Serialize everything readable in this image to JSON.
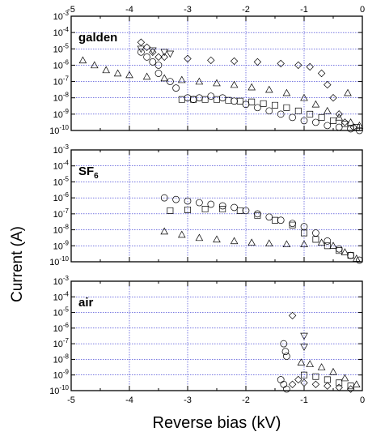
{
  "chart_data": {
    "type": "scatter",
    "x_axis": {
      "label": "Reverse bias (kV)",
      "range": [
        -5,
        0
      ],
      "ticks": [
        -5,
        -4,
        -3,
        -2,
        -1,
        0
      ],
      "tick_labels": [
        "-5",
        "-4",
        "-3",
        "-2",
        "-1",
        "0"
      ],
      "top_tick_labels": true
    },
    "y_axis": {
      "label": "Current (A)",
      "scale": "log",
      "range_exponent": [
        -10,
        -3
      ],
      "ticks_exponent": [
        -10,
        -9,
        -8,
        -7,
        -6,
        -5,
        -4,
        -3
      ],
      "tick_base": "10"
    },
    "grid": true,
    "panels": [
      {
        "label": "galden",
        "label_sub": "",
        "series": [
          {
            "marker": "circle",
            "points": [
              [
                -3.8,
                -5.2
              ],
              [
                -3.7,
                -5.5
              ],
              [
                -3.6,
                -5.8
              ],
              [
                -3.5,
                -6.0
              ],
              [
                -3.5,
                -6.5
              ],
              [
                -3.3,
                -7.0
              ],
              [
                -3.2,
                -7.4
              ],
              [
                -3.0,
                -8.0
              ],
              [
                -2.9,
                -8.1
              ],
              [
                -2.8,
                -8.0
              ],
              [
                -2.6,
                -7.9
              ],
              [
                -2.4,
                -8.0
              ],
              [
                -2.2,
                -8.2
              ],
              [
                -2.0,
                -8.4
              ],
              [
                -1.8,
                -8.6
              ],
              [
                -1.6,
                -8.8
              ],
              [
                -1.4,
                -9.0
              ],
              [
                -1.2,
                -9.2
              ],
              [
                -1.0,
                -9.4
              ],
              [
                -0.8,
                -9.5
              ],
              [
                -0.6,
                -9.7
              ],
              [
                -0.4,
                -9.8
              ],
              [
                -0.2,
                -9.9
              ],
              [
                -0.05,
                -10.0
              ]
            ]
          },
          {
            "marker": "diamond",
            "points": [
              [
                -3.8,
                -4.6
              ],
              [
                -3.7,
                -4.9
              ],
              [
                -3.6,
                -5.2
              ],
              [
                -3.5,
                -5.5
              ],
              [
                -3.4,
                -5.5
              ],
              [
                -3.0,
                -5.6
              ],
              [
                -2.6,
                -5.7
              ],
              [
                -2.2,
                -5.75
              ],
              [
                -1.8,
                -5.8
              ],
              [
                -1.4,
                -5.9
              ],
              [
                -1.1,
                -6.0
              ],
              [
                -0.9,
                -6.1
              ],
              [
                -0.7,
                -6.5
              ],
              [
                -0.6,
                -7.2
              ],
              [
                -0.5,
                -8.0
              ],
              [
                -0.4,
                -9.0
              ],
              [
                -0.3,
                -9.5
              ],
              [
                -0.15,
                -9.8
              ]
            ]
          },
          {
            "marker": "triangle-up",
            "points": [
              [
                -4.8,
                -5.7
              ],
              [
                -4.6,
                -6.0
              ],
              [
                -4.4,
                -6.3
              ],
              [
                -4.2,
                -6.5
              ],
              [
                -4.0,
                -6.6
              ],
              [
                -3.7,
                -6.7
              ],
              [
                -3.4,
                -6.8
              ],
              [
                -3.1,
                -6.9
              ],
              [
                -2.8,
                -7.0
              ],
              [
                -2.5,
                -7.1
              ],
              [
                -2.2,
                -7.2
              ],
              [
                -1.9,
                -7.35
              ],
              [
                -1.6,
                -7.5
              ],
              [
                -1.3,
                -7.7
              ],
              [
                -1.0,
                -8.0
              ],
              [
                -0.8,
                -8.4
              ],
              [
                -0.6,
                -8.8
              ],
              [
                -0.4,
                -9.2
              ],
              [
                -0.2,
                -9.5
              ],
              [
                -0.05,
                -9.7
              ],
              [
                -0.25,
                -7.7
              ]
            ]
          },
          {
            "marker": "square",
            "points": [
              [
                -3.1,
                -8.1
              ],
              [
                -2.9,
                -8.1
              ],
              [
                -2.7,
                -8.1
              ],
              [
                -2.5,
                -8.1
              ],
              [
                -2.3,
                -8.15
              ],
              [
                -2.1,
                -8.2
              ],
              [
                -1.9,
                -8.25
              ],
              [
                -1.7,
                -8.35
              ],
              [
                -1.5,
                -8.45
              ],
              [
                -1.3,
                -8.6
              ],
              [
                -1.1,
                -8.8
              ],
              [
                -0.9,
                -9.0
              ],
              [
                -0.7,
                -9.2
              ],
              [
                -0.5,
                -9.4
              ],
              [
                -0.3,
                -9.6
              ],
              [
                -0.1,
                -9.8
              ]
            ]
          },
          {
            "marker": "triangle-down",
            "points": [
              [
                -3.8,
                -5.0
              ],
              [
                -3.6,
                -5.1
              ],
              [
                -3.4,
                -5.2
              ],
              [
                -3.3,
                -5.3
              ]
            ]
          }
        ]
      },
      {
        "label": "SF",
        "label_sub": "6",
        "series": [
          {
            "marker": "circle",
            "points": [
              [
                -3.4,
                -6.0
              ],
              [
                -3.2,
                -6.1
              ],
              [
                -3.0,
                -6.2
              ],
              [
                -2.8,
                -6.3
              ],
              [
                -2.6,
                -6.4
              ],
              [
                -2.4,
                -6.5
              ],
              [
                -2.2,
                -6.6
              ],
              [
                -2.0,
                -6.8
              ],
              [
                -1.8,
                -7.0
              ],
              [
                -1.6,
                -7.2
              ],
              [
                -1.4,
                -7.4
              ],
              [
                -1.2,
                -7.6
              ],
              [
                -1.0,
                -7.8
              ],
              [
                -0.8,
                -8.2
              ],
              [
                -0.6,
                -8.7
              ],
              [
                -0.4,
                -9.2
              ],
              [
                -0.2,
                -9.6
              ],
              [
                -0.05,
                -9.9
              ]
            ]
          },
          {
            "marker": "triangle-up",
            "points": [
              [
                -3.4,
                -8.1
              ],
              [
                -3.1,
                -8.3
              ],
              [
                -2.8,
                -8.5
              ],
              [
                -2.5,
                -8.6
              ],
              [
                -2.2,
                -8.7
              ],
              [
                -1.9,
                -8.8
              ],
              [
                -1.6,
                -8.85
              ],
              [
                -1.3,
                -8.9
              ],
              [
                -1.0,
                -8.9
              ],
              [
                -0.7,
                -8.8
              ],
              [
                -0.5,
                -9.0
              ],
              [
                -0.3,
                -9.4
              ],
              [
                -0.1,
                -9.8
              ]
            ]
          },
          {
            "marker": "square",
            "points": [
              [
                -3.3,
                -6.8
              ],
              [
                -3.0,
                -6.75
              ],
              [
                -2.7,
                -6.7
              ],
              [
                -2.4,
                -6.7
              ],
              [
                -2.1,
                -6.8
              ],
              [
                -1.8,
                -7.1
              ],
              [
                -1.5,
                -7.4
              ],
              [
                -1.2,
                -7.7
              ],
              [
                -1.0,
                -8.2
              ],
              [
                -0.8,
                -8.6
              ],
              [
                -0.6,
                -9.0
              ],
              [
                -0.4,
                -9.3
              ],
              [
                -0.2,
                -9.6
              ]
            ]
          }
        ]
      },
      {
        "label": "air",
        "label_sub": "",
        "series": [
          {
            "marker": "circle",
            "points": [
              [
                -1.35,
                -7.0
              ],
              [
                -1.32,
                -7.5
              ],
              [
                -1.3,
                -7.8
              ],
              [
                -1.4,
                -9.3
              ],
              [
                -1.35,
                -9.6
              ],
              [
                -1.3,
                -9.9
              ]
            ]
          },
          {
            "marker": "diamond",
            "points": [
              [
                -1.2,
                -5.2
              ],
              [
                -1.2,
                -9.6
              ],
              [
                -1.1,
                -9.3
              ],
              [
                -1.0,
                -9.5
              ],
              [
                -0.8,
                -9.6
              ],
              [
                -0.6,
                -9.7
              ],
              [
                -0.4,
                -9.8
              ],
              [
                -0.2,
                -9.9
              ]
            ]
          },
          {
            "marker": "triangle-down",
            "points": [
              [
                -1.0,
                -6.5
              ],
              [
                -1.0,
                -7.2
              ]
            ]
          },
          {
            "marker": "triangle-up",
            "points": [
              [
                -1.05,
                -8.2
              ],
              [
                -0.9,
                -8.3
              ],
              [
                -0.7,
                -8.5
              ],
              [
                -0.5,
                -8.8
              ],
              [
                -0.3,
                -9.2
              ],
              [
                -0.1,
                -9.6
              ]
            ]
          },
          {
            "marker": "square",
            "points": [
              [
                -1.0,
                -9.0
              ],
              [
                -0.8,
                -9.1
              ],
              [
                -0.6,
                -9.3
              ],
              [
                -0.4,
                -9.5
              ],
              [
                -0.2,
                -9.7
              ]
            ]
          }
        ]
      }
    ]
  }
}
